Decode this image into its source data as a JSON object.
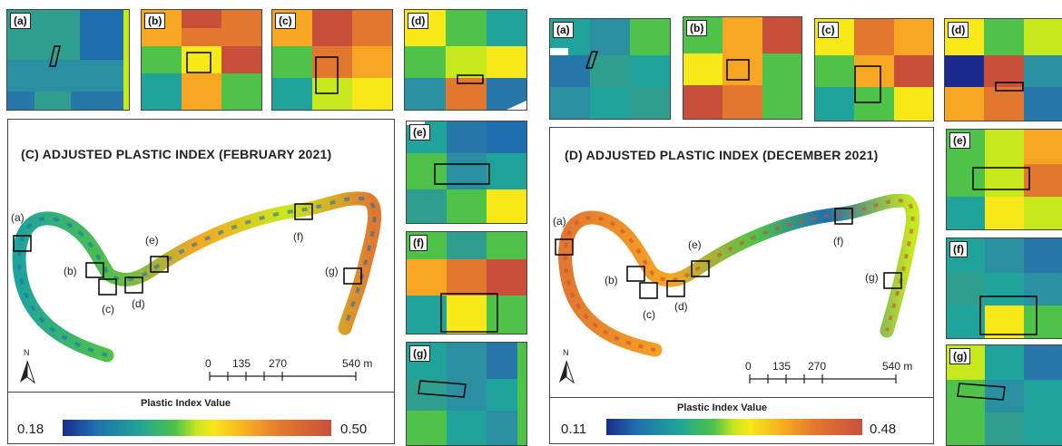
{
  "left_panel": {
    "title": "(C) ADJUSTED PLASTIC INDEX (FEBRUARY 2021)",
    "legend": {
      "title": "Plastic Index Value",
      "min": "0.18",
      "max": "0.50"
    },
    "scale": {
      "labels": [
        "0",
        "135",
        "270",
        "540 m"
      ]
    },
    "north": "N",
    "site_labels": [
      "(a)",
      "(b)",
      "(c)",
      "(d)",
      "(e)",
      "(f)",
      "(g)"
    ],
    "tiles": [
      "(a)",
      "(b)",
      "(c)",
      "(d)",
      "(e)",
      "(f)",
      "(g)"
    ]
  },
  "right_panel": {
    "title": "(D) ADJUSTED PLASTIC INDEX (DECEMBER 2021)",
    "legend": {
      "title": "Plastic Index Value",
      "min": "0.11",
      "max": "0.48"
    },
    "scale": {
      "labels": [
        "0",
        "135",
        "270",
        "540 m"
      ]
    },
    "north": "N",
    "site_labels": [
      "(a)",
      "(b)",
      "(c)",
      "(d)",
      "(e)",
      "(f)",
      "(g)"
    ],
    "tiles": [
      "(a)",
      "(b)",
      "(c)",
      "(d)",
      "(e)",
      "(f)",
      "(g)"
    ]
  },
  "colors": {
    "low": "#1b2a8c",
    "mid_low": "#1fa39a",
    "mid": "#4fc24a",
    "mid_high": "#f7e81a",
    "high_mid": "#f6a623",
    "high": "#c8503b"
  }
}
